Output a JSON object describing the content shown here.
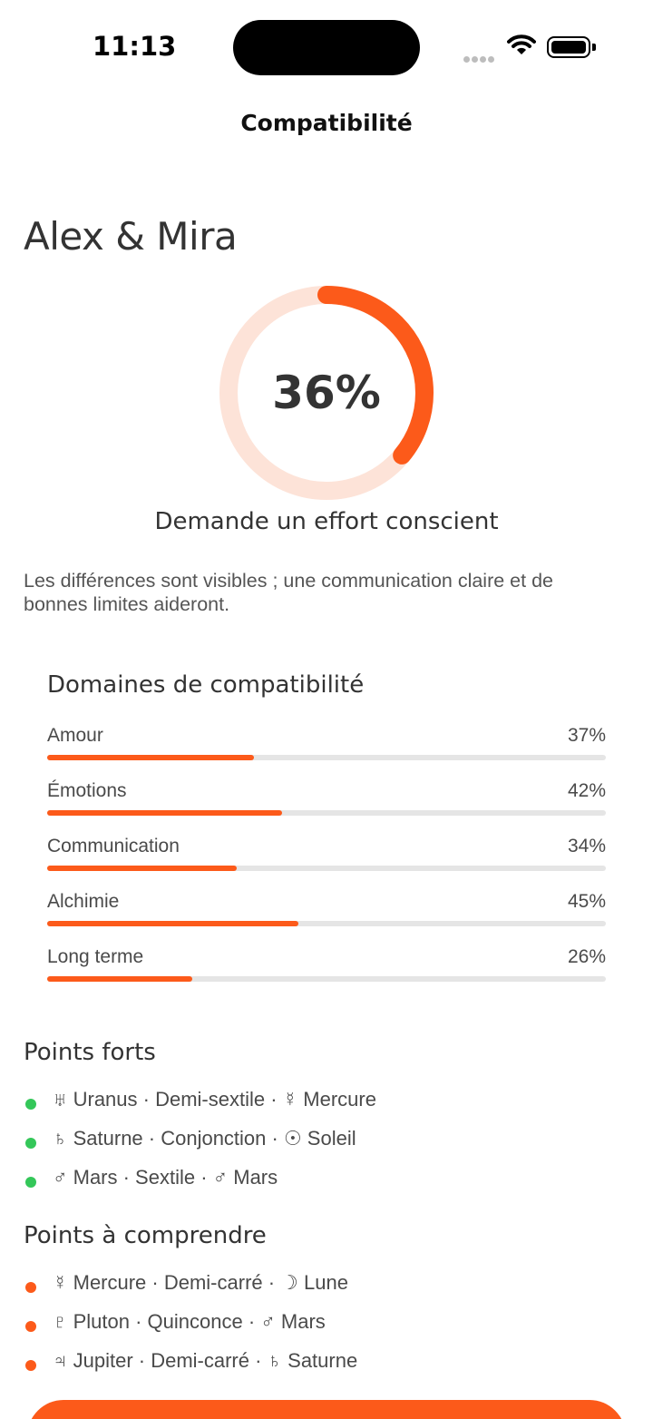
{
  "status_bar": {
    "time": "11:13"
  },
  "nav": {
    "title": "Compatibilité"
  },
  "couple": {
    "names": "Alex & Mira"
  },
  "score": {
    "percent_label": "36%",
    "value": 0.36,
    "verdict": "Demande un effort conscient"
  },
  "description": "Les différences sont visibles ; une communication claire et de bonnes limites aideront.",
  "colors": {
    "accent": "#fc5a1a",
    "accent_light": "#fde3d8",
    "positive": "#34c759",
    "track": "#e5e5e5"
  },
  "domains": {
    "title": "Domaines de compatibilité",
    "items": [
      {
        "label": "Amour",
        "value_label": "37%",
        "value": 0.37
      },
      {
        "label": "Émotions",
        "value_label": "42%",
        "value": 0.42
      },
      {
        "label": "Communication",
        "value_label": "34%",
        "value": 0.34
      },
      {
        "label": "Alchimie",
        "value_label": "45%",
        "value": 0.45
      },
      {
        "label": "Long terme",
        "value_label": "26%",
        "value": 0.26
      }
    ]
  },
  "strengths": {
    "title": "Points forts",
    "items": [
      "♅ Uranus · Demi-sextile · ☿ Mercure",
      "♄ Saturne · Conjonction · ☉ Soleil",
      "♂ Mars · Sextile · ♂ Mars"
    ]
  },
  "challenges": {
    "title": "Points à comprendre",
    "items": [
      "☿ Mercure · Demi-carré · ☽ Lune",
      "♇ Pluton · Quinconce · ♂ Mars",
      "♃ Jupiter · Demi-carré · ♄ Saturne"
    ]
  }
}
